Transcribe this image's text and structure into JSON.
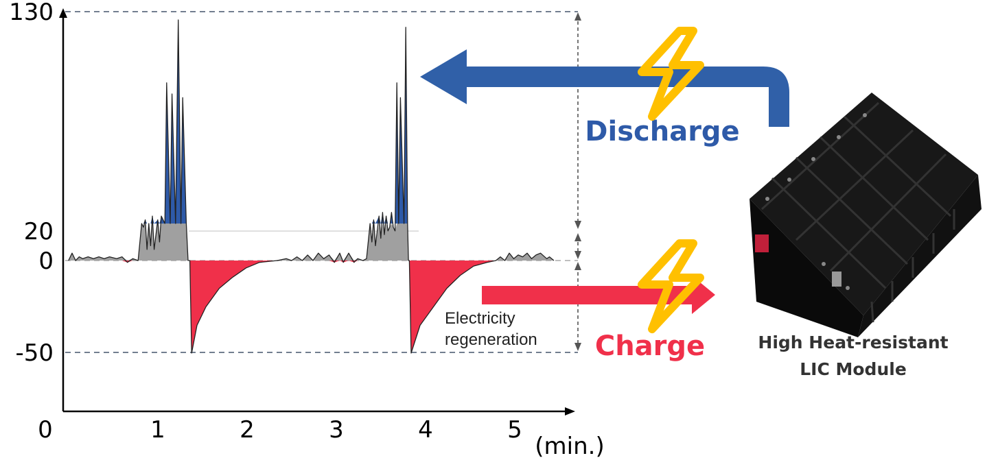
{
  "chart_data": {
    "type": "area",
    "xlabel": "(min.)",
    "x_ticks": [
      "0",
      "1",
      "2",
      "3",
      "4",
      "5"
    ],
    "y_ticks": [
      "130",
      "20",
      "0",
      "-50"
    ],
    "ylim": [
      -50,
      130
    ],
    "reference_lines": [
      130,
      20,
      0,
      -50
    ],
    "colors": {
      "discharge_peak": "#2e5aa8",
      "base_load": "#a0a0a0",
      "charge": "#f0304a",
      "arrow_discharge": "#3060a8",
      "arrow_charge": "#f0304a",
      "bolt": "#ffc000"
    },
    "profile": [
      [
        0.06,
        0
      ],
      [
        0.1,
        4
      ],
      [
        0.14,
        0
      ],
      [
        0.18,
        2
      ],
      [
        0.22,
        1
      ],
      [
        0.28,
        2
      ],
      [
        0.34,
        1
      ],
      [
        0.4,
        2
      ],
      [
        0.46,
        1
      ],
      [
        0.52,
        2
      ],
      [
        0.6,
        1
      ],
      [
        0.66,
        2
      ],
      [
        0.72,
        -1
      ],
      [
        0.78,
        1
      ],
      [
        0.84,
        0
      ],
      [
        0.88,
        20
      ],
      [
        0.9,
        18
      ],
      [
        0.92,
        22
      ],
      [
        0.94,
        6
      ],
      [
        0.96,
        20
      ],
      [
        0.98,
        8
      ],
      [
        1.0,
        24
      ],
      [
        1.02,
        6
      ],
      [
        1.06,
        22
      ],
      [
        1.08,
        10
      ],
      [
        1.1,
        24
      ],
      [
        1.14,
        20
      ],
      [
        1.16,
        96
      ],
      [
        1.2,
        20
      ],
      [
        1.22,
        90
      ],
      [
        1.26,
        20
      ],
      [
        1.29,
        130
      ],
      [
        1.32,
        20
      ],
      [
        1.34,
        88
      ],
      [
        1.38,
        20
      ],
      [
        1.4,
        0
      ],
      [
        1.42,
        0
      ],
      [
        1.44,
        -50
      ],
      [
        1.5,
        -35
      ],
      [
        1.6,
        -25
      ],
      [
        1.75,
        -15
      ],
      [
        1.9,
        -9
      ],
      [
        2.05,
        -4
      ],
      [
        2.2,
        -1
      ],
      [
        2.4,
        0
      ],
      [
        2.5,
        1
      ],
      [
        2.56,
        0
      ],
      [
        2.62,
        2
      ],
      [
        2.68,
        0
      ],
      [
        2.74,
        3
      ],
      [
        2.8,
        0
      ],
      [
        2.86,
        4
      ],
      [
        2.92,
        1
      ],
      [
        2.98,
        3
      ],
      [
        3.04,
        -1
      ],
      [
        3.1,
        4
      ],
      [
        3.14,
        -1
      ],
      [
        3.2,
        4
      ],
      [
        3.26,
        -1
      ],
      [
        3.3,
        1
      ],
      [
        3.36,
        0
      ],
      [
        3.4,
        1
      ],
      [
        3.44,
        20
      ],
      [
        3.46,
        10
      ],
      [
        3.48,
        22
      ],
      [
        3.5,
        8
      ],
      [
        3.54,
        24
      ],
      [
        3.56,
        12
      ],
      [
        3.58,
        26
      ],
      [
        3.6,
        14
      ],
      [
        3.62,
        24
      ],
      [
        3.64,
        16
      ],
      [
        3.66,
        18
      ],
      [
        3.68,
        26
      ],
      [
        3.7,
        18
      ],
      [
        3.72,
        16
      ],
      [
        3.74,
        96
      ],
      [
        3.76,
        20
      ],
      [
        3.78,
        88
      ],
      [
        3.82,
        20
      ],
      [
        3.84,
        126
      ],
      [
        3.86,
        20
      ],
      [
        3.87,
        0
      ],
      [
        3.88,
        0
      ],
      [
        3.9,
        -50
      ],
      [
        4.0,
        -35
      ],
      [
        4.15,
        -25
      ],
      [
        4.3,
        -15
      ],
      [
        4.45,
        -8
      ],
      [
        4.6,
        -3
      ],
      [
        4.75,
        -1
      ],
      [
        4.85,
        0
      ],
      [
        4.9,
        2
      ],
      [
        4.95,
        0
      ],
      [
        5.0,
        4
      ],
      [
        5.05,
        1
      ],
      [
        5.1,
        3
      ],
      [
        5.15,
        2
      ],
      [
        5.2,
        4
      ],
      [
        5.25,
        1
      ],
      [
        5.3,
        3
      ],
      [
        5.35,
        4
      ],
      [
        5.42,
        1
      ],
      [
        5.45,
        2
      ],
      [
        5.5,
        0
      ]
    ]
  },
  "annotations": {
    "discharge": "Discharge",
    "charge": "Charge",
    "regeneration_line1": "Electricity",
    "regeneration_line2": "regeneration",
    "module_line1": "High Heat-resistant",
    "module_line2": "LIC Module"
  },
  "icons": [
    "lightning-bolt-icon",
    "battery-module-image"
  ]
}
